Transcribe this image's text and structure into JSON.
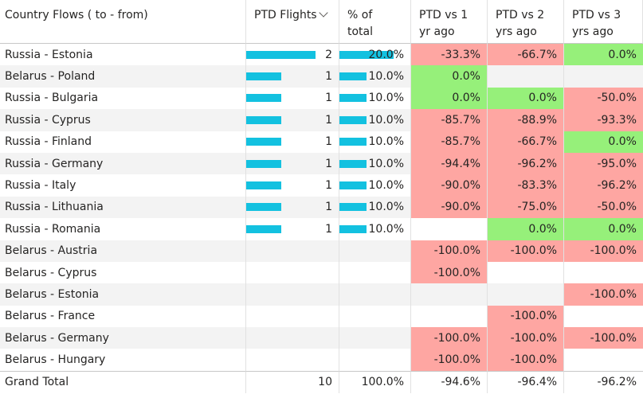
{
  "header": {
    "col_flow": "Country Flows ( to - from)",
    "col_flights": "PTD Flights",
    "col_pct": "% of\ntotal",
    "col_vs1": "PTD vs 1\nyr ago",
    "col_vs2": "PTD vs 2\nyrs ago",
    "col_vs3": "PTD vs 3\nyrs ago"
  },
  "colors": {
    "bar": "#13c1e0",
    "positive": "#96f07a",
    "negative": "#fea6a2",
    "alt_row": "#f3f3f3"
  },
  "rows": [
    {
      "flow": "Russia - Estonia",
      "flights": "2",
      "flights_frac": 1.0,
      "pct": "20.0%",
      "pct_frac": 1.0,
      "vs1": "-33.3%",
      "vs2": "-66.7%",
      "vs3": "0.0%"
    },
    {
      "flow": "Belarus - Poland",
      "flights": "1",
      "flights_frac": 0.5,
      "pct": "10.0%",
      "pct_frac": 0.5,
      "vs1": "0.0%",
      "vs2": "",
      "vs3": ""
    },
    {
      "flow": "Russia - Bulgaria",
      "flights": "1",
      "flights_frac": 0.5,
      "pct": "10.0%",
      "pct_frac": 0.5,
      "vs1": "0.0%",
      "vs2": "0.0%",
      "vs3": "-50.0%"
    },
    {
      "flow": "Russia - Cyprus",
      "flights": "1",
      "flights_frac": 0.5,
      "pct": "10.0%",
      "pct_frac": 0.5,
      "vs1": "-85.7%",
      "vs2": "-88.9%",
      "vs3": "-93.3%"
    },
    {
      "flow": "Russia - Finland",
      "flights": "1",
      "flights_frac": 0.5,
      "pct": "10.0%",
      "pct_frac": 0.5,
      "vs1": "-85.7%",
      "vs2": "-66.7%",
      "vs3": "0.0%"
    },
    {
      "flow": "Russia - Germany",
      "flights": "1",
      "flights_frac": 0.5,
      "pct": "10.0%",
      "pct_frac": 0.5,
      "vs1": "-94.4%",
      "vs2": "-96.2%",
      "vs3": "-95.0%"
    },
    {
      "flow": "Russia - Italy",
      "flights": "1",
      "flights_frac": 0.5,
      "pct": "10.0%",
      "pct_frac": 0.5,
      "vs1": "-90.0%",
      "vs2": "-83.3%",
      "vs3": "-96.2%"
    },
    {
      "flow": "Russia - Lithuania",
      "flights": "1",
      "flights_frac": 0.5,
      "pct": "10.0%",
      "pct_frac": 0.5,
      "vs1": "-90.0%",
      "vs2": "-75.0%",
      "vs3": "-50.0%"
    },
    {
      "flow": "Russia - Romania",
      "flights": "1",
      "flights_frac": 0.5,
      "pct": "10.0%",
      "pct_frac": 0.5,
      "vs1": "",
      "vs2": "0.0%",
      "vs3": "0.0%"
    },
    {
      "flow": "Belarus - Austria",
      "flights": "",
      "flights_frac": 0,
      "pct": "",
      "pct_frac": 0,
      "vs1": "-100.0%",
      "vs2": "-100.0%",
      "vs3": "-100.0%"
    },
    {
      "flow": "Belarus - Cyprus",
      "flights": "",
      "flights_frac": 0,
      "pct": "",
      "pct_frac": 0,
      "vs1": "-100.0%",
      "vs2": "",
      "vs3": ""
    },
    {
      "flow": "Belarus - Estonia",
      "flights": "",
      "flights_frac": 0,
      "pct": "",
      "pct_frac": 0,
      "vs1": "",
      "vs2": "",
      "vs3": "-100.0%"
    },
    {
      "flow": "Belarus - France",
      "flights": "",
      "flights_frac": 0,
      "pct": "",
      "pct_frac": 0,
      "vs1": "",
      "vs2": "-100.0%",
      "vs3": ""
    },
    {
      "flow": "Belarus - Germany",
      "flights": "",
      "flights_frac": 0,
      "pct": "",
      "pct_frac": 0,
      "vs1": "-100.0%",
      "vs2": "-100.0%",
      "vs3": "-100.0%"
    },
    {
      "flow": "Belarus - Hungary",
      "flights": "",
      "flights_frac": 0,
      "pct": "",
      "pct_frac": 0,
      "vs1": "-100.0%",
      "vs2": "-100.0%",
      "vs3": ""
    }
  ],
  "total": {
    "label": "Grand Total",
    "flights": "10",
    "pct": "100.0%",
    "vs1": "-94.6%",
    "vs2": "-96.4%",
    "vs3": "-96.2%"
  }
}
